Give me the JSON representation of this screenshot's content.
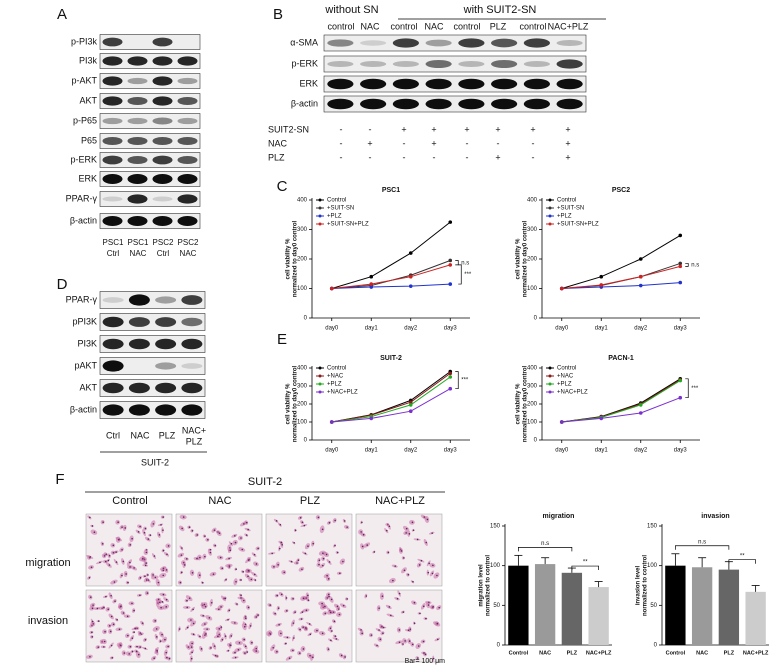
{
  "panel_labels": [
    "A",
    "B",
    "C",
    "D",
    "E",
    "F"
  ],
  "panel_a": {
    "rows": [
      "p-PI3k",
      "PI3k",
      "p-AKT",
      "AKT",
      "p-P65",
      "P65",
      "p-ERK",
      "ERK",
      "PPAR-γ",
      "β-actin"
    ],
    "lanes": [
      [
        "PSC1",
        "Ctrl"
      ],
      [
        "PSC1",
        "NAC"
      ],
      [
        "PSC2",
        "Ctrl"
      ],
      [
        "PSC2",
        "NAC"
      ]
    ]
  },
  "panel_b": {
    "groups": [
      "without SN",
      "with SUIT2-SN"
    ],
    "lanes": [
      "control",
      "NAC",
      "control",
      "NAC",
      "control",
      "PLZ",
      "control",
      "NAC+PLZ"
    ],
    "rows": [
      "α-SMA",
      "p-ERK",
      "ERK",
      "β-actin"
    ],
    "treatments": [
      {
        "name": "SUIT2-SN",
        "signs": [
          "-",
          "-",
          "+",
          "+",
          "+",
          "+",
          "+",
          "+"
        ]
      },
      {
        "name": "NAC",
        "signs": [
          "-",
          "+",
          "-",
          "+",
          "-",
          "-",
          "-",
          "+"
        ]
      },
      {
        "name": "PLZ",
        "signs": [
          "-",
          "-",
          "-",
          "-",
          "-",
          "+",
          "-",
          "+"
        ]
      }
    ]
  },
  "panel_d": {
    "rows": [
      "PPAR-γ",
      "pPI3K",
      "PI3K",
      "pAKT",
      "AKT",
      "β-actin"
    ],
    "lanes": [
      [
        "Ctrl"
      ],
      [
        "NAC"
      ],
      [
        "PLZ"
      ],
      [
        "NAC+",
        "PLZ"
      ]
    ],
    "cell_line": "SUIT-2"
  },
  "panel_f": {
    "cell_line": "SUIT-2",
    "columns": [
      "Control",
      "NAC",
      "PLZ",
      "NAC+PLZ"
    ],
    "rows": [
      "migration",
      "invasion"
    ],
    "scale_bar": "Bar= 100 μm"
  },
  "chart_data": [
    {
      "type": "line",
      "title": "PSC1",
      "y_label": [
        "cell viability %",
        "normalized to day0 control"
      ],
      "categories": [
        "day0",
        "day1",
        "day2",
        "day3"
      ],
      "ylim": [
        0,
        400
      ],
      "yticks": [
        0,
        100,
        200,
        300,
        400
      ],
      "series": [
        {
          "name": "Control",
          "color": "#000000",
          "values": [
            100,
            140,
            220,
            325
          ]
        },
        {
          "name": "+SUIT-SN",
          "color": "#333333",
          "values": [
            100,
            110,
            145,
            195
          ]
        },
        {
          "name": "+PLZ",
          "color": "#2233cc",
          "values": [
            100,
            105,
            108,
            115
          ]
        },
        {
          "name": "+SUIT-SN+PLZ",
          "color": "#cc2222",
          "values": [
            100,
            115,
            140,
            180
          ]
        }
      ],
      "annotations": [
        "n.s",
        "***"
      ]
    },
    {
      "type": "line",
      "title": "PSC2",
      "y_label": [
        "cell viability %",
        "normalized to day0 control"
      ],
      "categories": [
        "day0",
        "day1",
        "day2",
        "day3"
      ],
      "ylim": [
        0,
        400
      ],
      "yticks": [
        0,
        100,
        200,
        300,
        400
      ],
      "series": [
        {
          "name": "Control",
          "color": "#000000",
          "values": [
            100,
            140,
            200,
            280
          ]
        },
        {
          "name": "+SUIT-SN",
          "color": "#333333",
          "values": [
            100,
            110,
            140,
            185
          ]
        },
        {
          "name": "+PLZ",
          "color": "#2233cc",
          "values": [
            100,
            105,
            110,
            120
          ]
        },
        {
          "name": "+SUIT-SN+PLZ",
          "color": "#cc2222",
          "values": [
            100,
            112,
            140,
            175
          ]
        }
      ],
      "annotations": [
        "n.s"
      ]
    },
    {
      "type": "line",
      "title": "SUIT-2",
      "y_label": [
        "cell viability %",
        "normalized to day0 control"
      ],
      "categories": [
        "day0",
        "day1",
        "day2",
        "day3"
      ],
      "ylim": [
        0,
        400
      ],
      "yticks": [
        0,
        100,
        200,
        300,
        400
      ],
      "series": [
        {
          "name": "Control",
          "color": "#000000",
          "values": [
            100,
            140,
            220,
            380
          ]
        },
        {
          "name": "+NAC",
          "color": "#8b1a1a",
          "values": [
            100,
            138,
            210,
            370
          ]
        },
        {
          "name": "+PLZ",
          "color": "#22aa22",
          "values": [
            100,
            130,
            195,
            350
          ]
        },
        {
          "name": "+NAC+PLZ",
          "color": "#7a2fd0",
          "values": [
            100,
            120,
            160,
            285
          ]
        }
      ],
      "annotations": [
        "***"
      ]
    },
    {
      "type": "line",
      "title": "PACN-1",
      "y_label": [
        "cell viability %",
        "normalized to day0 control"
      ],
      "categories": [
        "day0",
        "day1",
        "day2",
        "day3"
      ],
      "ylim": [
        0,
        400
      ],
      "yticks": [
        0,
        100,
        200,
        300,
        400
      ],
      "series": [
        {
          "name": "Control",
          "color": "#000000",
          "values": [
            100,
            130,
            205,
            340
          ]
        },
        {
          "name": "+NAC",
          "color": "#8b1a1a",
          "values": [
            100,
            128,
            200,
            335
          ]
        },
        {
          "name": "+PLZ",
          "color": "#22aa22",
          "values": [
            100,
            125,
            195,
            330
          ]
        },
        {
          "name": "+NAC+PLZ",
          "color": "#7a2fd0",
          "values": [
            100,
            120,
            150,
            235
          ]
        }
      ],
      "annotations": [
        "***"
      ]
    },
    {
      "type": "bar",
      "title": "migration",
      "y_label": [
        "migration level",
        "normalized to control"
      ],
      "categories": [
        "Control",
        "NAC",
        "PLZ",
        "NAC+PLZ"
      ],
      "values": [
        100,
        102,
        91,
        73
      ],
      "errors": [
        13,
        8,
        6,
        7
      ],
      "colors": [
        "#000000",
        "#9a9a9a",
        "#666666",
        "#cccccc"
      ],
      "ylim": [
        0,
        150
      ],
      "yticks": [
        0,
        50,
        100,
        150
      ],
      "annotations": [
        "n.s",
        "**"
      ]
    },
    {
      "type": "bar",
      "title": "invasion",
      "y_label": [
        "invasion level",
        "normalized to control"
      ],
      "categories": [
        "Control",
        "NAC",
        "PLZ",
        "NAC+PLZ"
      ],
      "values": [
        100,
        98,
        95,
        67
      ],
      "errors": [
        15,
        12,
        10,
        8
      ],
      "colors": [
        "#000000",
        "#9a9a9a",
        "#666666",
        "#cccccc"
      ],
      "ylim": [
        0,
        150
      ],
      "yticks": [
        0,
        50,
        100,
        150
      ],
      "annotations": [
        "n.s",
        "**"
      ]
    }
  ]
}
